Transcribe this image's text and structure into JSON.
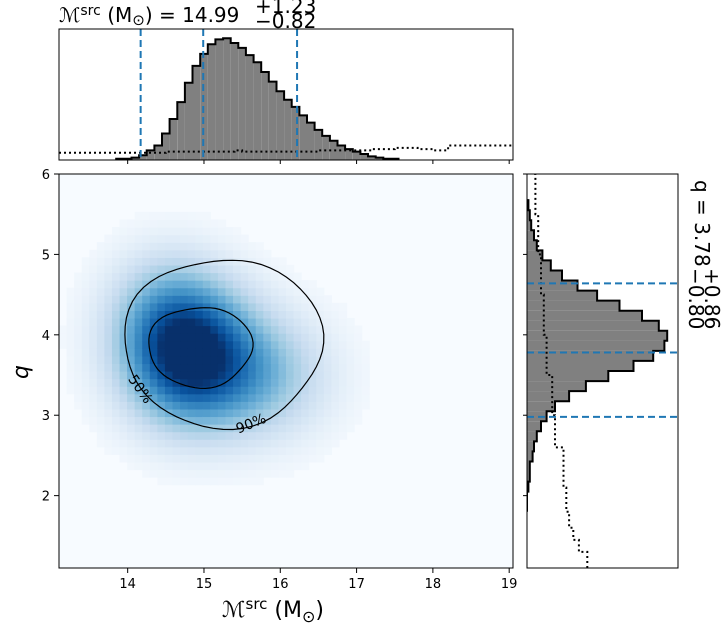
{
  "chart_data": {
    "type": "heatmap",
    "title": "",
    "joint": {
      "xlabel_main": "ℳ",
      "xlabel_sup": "src",
      "xlabel_unit": " (M",
      "xlabel_sun": "⊙",
      "xlabel_close": ")",
      "ylabel": "q",
      "xlim": [
        13.1,
        19.05
      ],
      "ylim": [
        1.1,
        6.0
      ],
      "xticks": [
        "14",
        "15",
        "16",
        "17",
        "18",
        "19"
      ],
      "yticks": [
        "2",
        "3",
        "4",
        "5",
        "6"
      ],
      "density_peak": [
        14.8,
        3.75
      ],
      "colormap": "Blues",
      "contours": [
        {
          "label": "50%",
          "level": 0.5
        },
        {
          "label": "90%",
          "level": 0.9
        }
      ]
    },
    "top_marginal": {
      "title_main": "ℳ",
      "title_sup": "src",
      "title_unit": " (M",
      "title_sun": "⊙",
      "title_value": ") = 14.99",
      "title_plus": "+1.23",
      "title_minus": "−0.82",
      "median": 14.99,
      "lower": 14.17,
      "upper": 16.22,
      "bins_start": 13.85,
      "bin_width": 0.1,
      "histogram": [
        0.01,
        0.01,
        0.02,
        0.04,
        0.08,
        0.12,
        0.22,
        0.34,
        0.48,
        0.64,
        0.78,
        0.88,
        0.96,
        1.0,
        1.01,
        0.97,
        0.93,
        0.87,
        0.81,
        0.73,
        0.65,
        0.57,
        0.5,
        0.44,
        0.37,
        0.31,
        0.25,
        0.2,
        0.16,
        0.12,
        0.09,
        0.07,
        0.05,
        0.03,
        0.02,
        0.01,
        0.01
      ],
      "prior": [
        [
          13.1,
          0.06
        ],
        [
          13.9,
          0.06
        ],
        [
          14.5,
          0.07
        ],
        [
          15.4,
          0.08
        ],
        [
          15.5,
          0.07
        ],
        [
          16.5,
          0.08
        ],
        [
          17.2,
          0.09
        ],
        [
          17.5,
          0.1
        ],
        [
          17.8,
          0.09
        ],
        [
          18.0,
          0.08
        ],
        [
          18.2,
          0.12
        ],
        [
          18.5,
          0.12
        ],
        [
          19.05,
          0.12
        ]
      ]
    },
    "right_marginal": {
      "label_main": "q = 3.78",
      "label_plus": "+0.86",
      "label_minus": "−0.80",
      "median": 3.78,
      "lower": 2.98,
      "upper": 4.64,
      "bins_start": 1.8,
      "bin_width": 0.125,
      "histogram": [
        0.0,
        0.0,
        0.01,
        0.02,
        0.02,
        0.04,
        0.05,
        0.07,
        0.1,
        0.14,
        0.2,
        0.3,
        0.42,
        0.58,
        0.76,
        0.9,
        0.98,
        1.0,
        0.94,
        0.82,
        0.66,
        0.5,
        0.36,
        0.25,
        0.17,
        0.11,
        0.07,
        0.05,
        0.03,
        0.02,
        0.01
      ],
      "prior": [
        [
          1.1,
          0.43
        ],
        [
          1.3,
          0.37
        ],
        [
          1.45,
          0.33
        ],
        [
          1.6,
          0.3
        ],
        [
          1.8,
          0.28
        ],
        [
          2.1,
          0.26
        ],
        [
          2.6,
          0.2
        ],
        [
          3.0,
          0.18
        ],
        [
          3.5,
          0.14
        ],
        [
          4.0,
          0.12
        ],
        [
          4.5,
          0.1
        ],
        [
          5.0,
          0.08
        ],
        [
          5.5,
          0.06
        ],
        [
          6.0,
          0.04
        ]
      ]
    }
  },
  "colors": {
    "hist_fill": "#808080",
    "hist_edge": "#000000",
    "quantile_line": "#1f77b4",
    "cmap_low": "#f7fbff",
    "cmap_high": "#08306b"
  }
}
